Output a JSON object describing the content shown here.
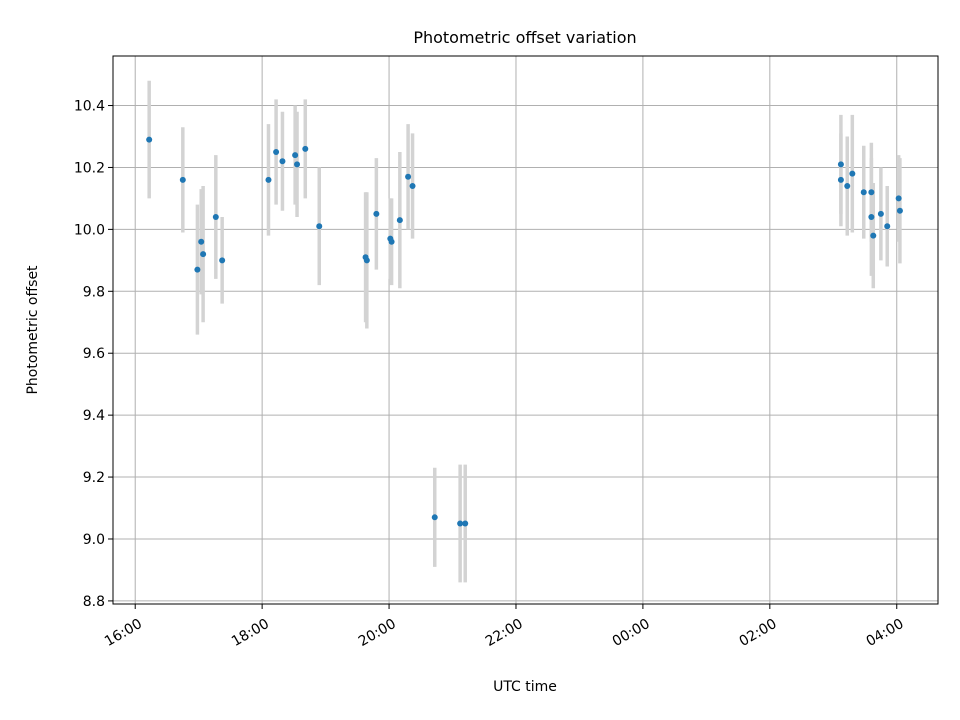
{
  "chart_data": {
    "type": "scatter",
    "title": "Photometric offset variation",
    "xlabel": "UTC time",
    "ylabel": "Photometric offset",
    "x_unit": "hours since 16:00 UTC",
    "xlim": [
      -0.35,
      12.65
    ],
    "ylim": [
      8.79,
      10.56
    ],
    "grid": true,
    "x_ticks": [
      {
        "value": 0,
        "label": "16:00"
      },
      {
        "value": 2,
        "label": "18:00"
      },
      {
        "value": 4,
        "label": "20:00"
      },
      {
        "value": 6,
        "label": "22:00"
      },
      {
        "value": 8,
        "label": "00:00"
      },
      {
        "value": 10,
        "label": "02:00"
      },
      {
        "value": 12,
        "label": "04:00"
      }
    ],
    "y_ticks": [
      {
        "value": 8.8,
        "label": "8.8"
      },
      {
        "value": 9.0,
        "label": "9.0"
      },
      {
        "value": 9.2,
        "label": "9.2"
      },
      {
        "value": 9.4,
        "label": "9.4"
      },
      {
        "value": 9.6,
        "label": "9.6"
      },
      {
        "value": 9.8,
        "label": "9.8"
      },
      {
        "value": 10.0,
        "label": "10.0"
      },
      {
        "value": 10.2,
        "label": "10.2"
      },
      {
        "value": 10.4,
        "label": "10.4"
      }
    ],
    "colors": {
      "point": "#1f77b4",
      "errorbar": "#d3d3d3",
      "grid": "#b0b0b0"
    },
    "series": [
      {
        "name": "offset",
        "points": [
          {
            "x": 0.22,
            "y": 10.29,
            "err": 0.19
          },
          {
            "x": 0.75,
            "y": 10.16,
            "err": 0.17
          },
          {
            "x": 0.98,
            "y": 9.87,
            "err": 0.21
          },
          {
            "x": 1.04,
            "y": 9.96,
            "err": 0.17
          },
          {
            "x": 1.07,
            "y": 9.92,
            "err": 0.22
          },
          {
            "x": 1.27,
            "y": 10.04,
            "err": 0.2
          },
          {
            "x": 1.37,
            "y": 9.9,
            "err": 0.14
          },
          {
            "x": 2.1,
            "y": 10.16,
            "err": 0.18
          },
          {
            "x": 2.22,
            "y": 10.25,
            "err": 0.17
          },
          {
            "x": 2.32,
            "y": 10.22,
            "err": 0.16
          },
          {
            "x": 2.52,
            "y": 10.24,
            "err": 0.16
          },
          {
            "x": 2.55,
            "y": 10.21,
            "err": 0.17
          },
          {
            "x": 2.68,
            "y": 10.26,
            "err": 0.16
          },
          {
            "x": 2.9,
            "y": 10.01,
            "err": 0.19
          },
          {
            "x": 3.63,
            "y": 9.91,
            "err": 0.21
          },
          {
            "x": 3.65,
            "y": 9.9,
            "err": 0.22
          },
          {
            "x": 3.8,
            "y": 10.05,
            "err": 0.18
          },
          {
            "x": 4.02,
            "y": 9.97,
            "err": 0.13
          },
          {
            "x": 4.04,
            "y": 9.96,
            "err": 0.14
          },
          {
            "x": 4.17,
            "y": 10.03,
            "err": 0.22
          },
          {
            "x": 4.3,
            "y": 10.17,
            "err": 0.17
          },
          {
            "x": 4.37,
            "y": 10.14,
            "err": 0.17
          },
          {
            "x": 4.72,
            "y": 9.07,
            "err": 0.16
          },
          {
            "x": 5.12,
            "y": 9.05,
            "err": 0.19
          },
          {
            "x": 5.2,
            "y": 9.05,
            "err": 0.19
          },
          {
            "x": 11.12,
            "y": 10.16,
            "err": 0.15
          },
          {
            "x": 11.12,
            "y": 10.21,
            "err": 0.16
          },
          {
            "x": 11.22,
            "y": 10.14,
            "err": 0.16
          },
          {
            "x": 11.3,
            "y": 10.18,
            "err": 0.19
          },
          {
            "x": 11.48,
            "y": 10.12,
            "err": 0.15
          },
          {
            "x": 11.6,
            "y": 10.04,
            "err": 0.19
          },
          {
            "x": 11.6,
            "y": 10.12,
            "err": 0.16
          },
          {
            "x": 11.63,
            "y": 9.98,
            "err": 0.17
          },
          {
            "x": 11.75,
            "y": 10.05,
            "err": 0.15
          },
          {
            "x": 11.85,
            "y": 10.01,
            "err": 0.13
          },
          {
            "x": 12.03,
            "y": 10.1,
            "err": 0.14
          },
          {
            "x": 12.05,
            "y": 10.06,
            "err": 0.17
          }
        ]
      }
    ]
  }
}
